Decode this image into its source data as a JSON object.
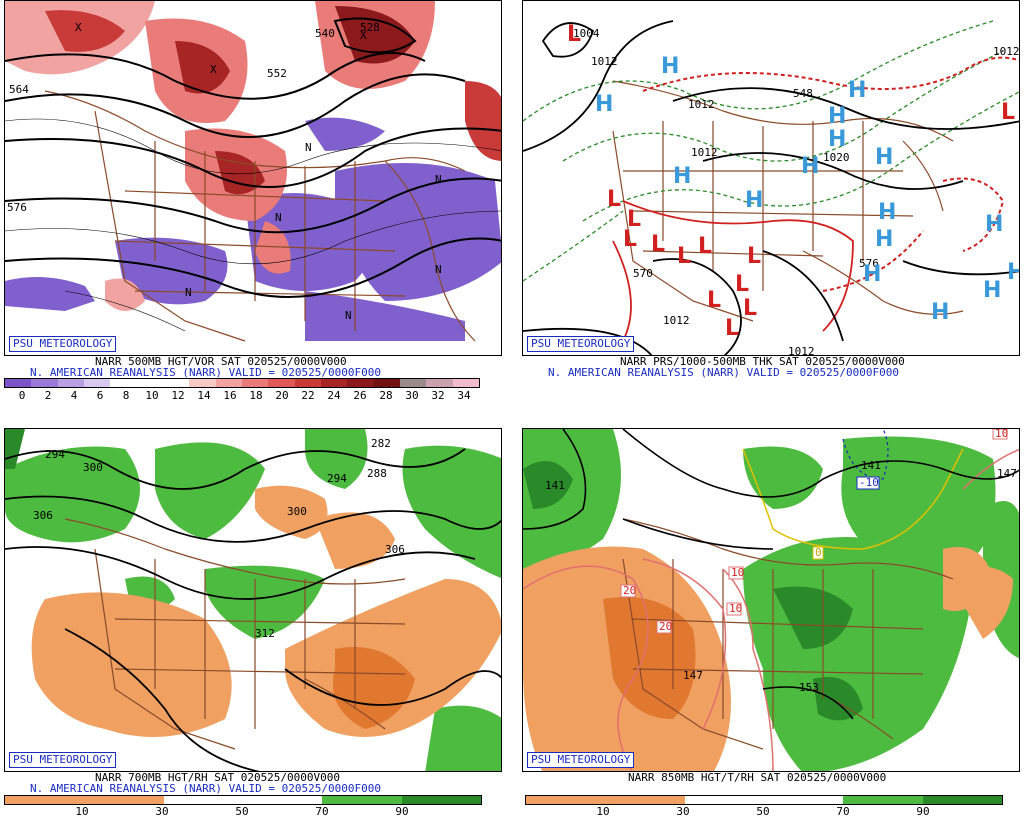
{
  "badge": "PSU METEOROLOGY",
  "panels": {
    "vor500": {
      "title_line1": "NARR 500MB HGT/VOR SAT 020525/0000V000",
      "title_line2": "N. AMERICAN REANALYSIS (NARR) VALID = 020525/0000F000",
      "colorbar_ticks": [
        "0",
        "2",
        "4",
        "6",
        "8",
        "10",
        "12",
        "14",
        "16",
        "18",
        "20",
        "22",
        "24",
        "26",
        "28",
        "30",
        "32",
        "34"
      ],
      "colorbar_colors": [
        "#7b55c8",
        "#9a7ad6",
        "#b9a0e3",
        "#d8c8f0",
        "#ffffff",
        "#ffffff",
        "#ffffff",
        "#f6c9c6",
        "#f0a3a0",
        "#e97c79",
        "#df5a57",
        "#c83b39",
        "#a82526",
        "#8c1a1c",
        "#701214",
        "#9a8a8a",
        "#c9a2ae",
        "#f0bccb"
      ],
      "contour_labels": [
        "540",
        "528",
        "552",
        "564",
        "576"
      ],
      "vorticity_letters": [
        "N",
        "X"
      ]
    },
    "prs1000": {
      "title_line1": "NARR PRS/1000-500MB THK SAT 020525/0000V000",
      "title_line2": "N. AMERICAN REANALYSIS (NARR) VALID = 020525/0000F000",
      "contour_labels": [
        "1004",
        "1012",
        "1012",
        "1012",
        "1020",
        "1012",
        "1012",
        "1012",
        "548",
        "570",
        "576"
      ],
      "high_letter": "H",
      "low_letter": "L"
    },
    "rh700": {
      "title_line1": "NARR 700MB HGT/RH SAT 020525/0000V000",
      "title_line2": "N. AMERICAN REANALYSIS (NARR) VALID = 020525/0000F000",
      "colorbar_ticks": [
        "10",
        "30",
        "50",
        "70",
        "90"
      ],
      "contour_labels": [
        "294",
        "300",
        "306",
        "288",
        "282",
        "294",
        "300",
        "306",
        "312"
      ]
    },
    "t850": {
      "title_line1": "NARR 850MB HGT/T/RH SAT 020525/0000V000",
      "colorbar_ticks": [
        "10",
        "30",
        "50",
        "70",
        "90"
      ],
      "contour_labels": [
        "141",
        "147",
        "153",
        "141",
        "147"
      ],
      "temp_labels": [
        "20",
        "20",
        "10",
        "0",
        "-10",
        "10",
        "10"
      ]
    }
  },
  "colors": {
    "dry": "#f0a060",
    "moist": "#4dbb3f",
    "deep_moist": "#2a8a2a",
    "vort_pos": "#e05a5a",
    "vort_neg": "#8060cc",
    "map_borders": "#8a4a2a",
    "high": "#3a9ad9",
    "low": "#d02020"
  }
}
